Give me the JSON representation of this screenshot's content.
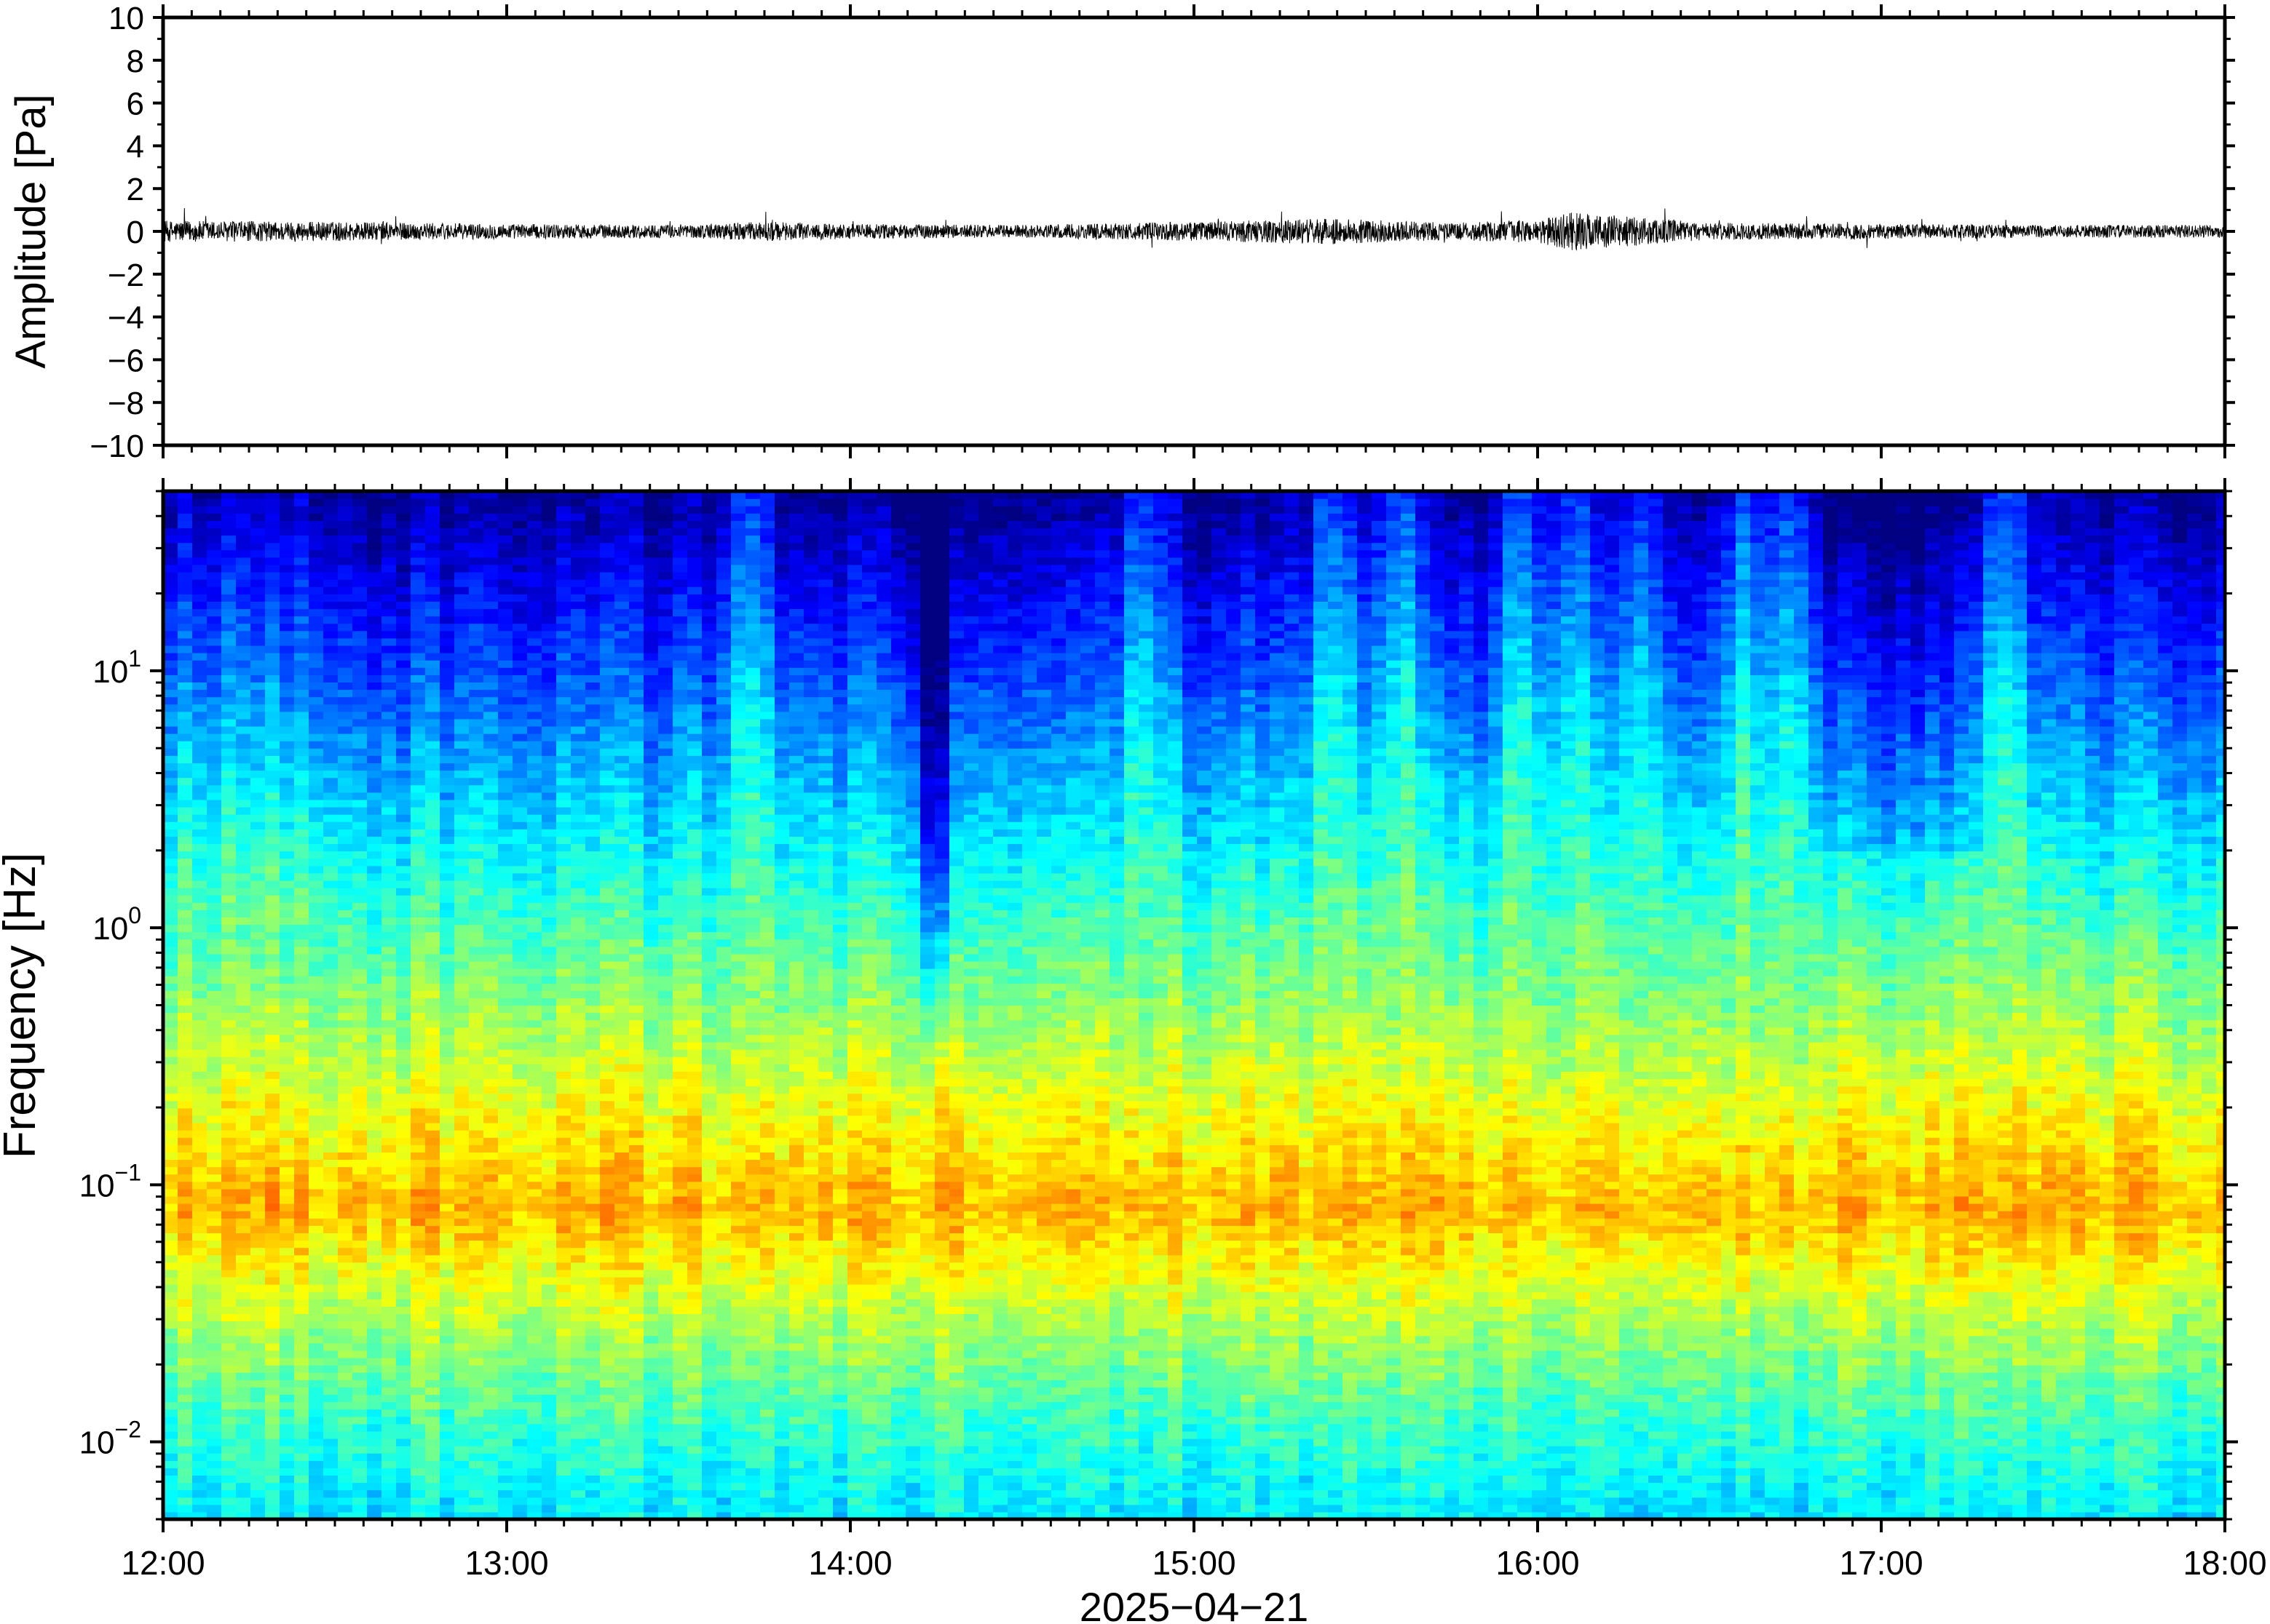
{
  "chart_data": [
    {
      "type": "line",
      "panel": "waveform",
      "ylabel": "Amplitude [Pa]",
      "ylim": [
        -10,
        10
      ],
      "yticks": [
        10,
        8,
        6,
        4,
        2,
        0,
        -2,
        -4,
        -6,
        -8,
        -10
      ],
      "ytick_labels": [
        "10",
        "8",
        "6",
        "4",
        "2",
        "0",
        "−2",
        "−4",
        "−6",
        "−8",
        "−10"
      ],
      "grid": false,
      "trace_color": "#000000",
      "series": [
        {
          "x_hours": [
            12.0,
            12.5,
            13.0,
            13.5,
            13.75,
            14.0,
            14.5,
            15.0,
            15.4,
            15.75,
            16.0,
            16.1,
            16.5,
            17.0,
            17.5,
            18.0
          ],
          "envelope_pa": [
            0.5,
            0.45,
            0.35,
            0.3,
            0.45,
            0.35,
            0.3,
            0.45,
            0.6,
            0.4,
            0.55,
            0.9,
            0.4,
            0.35,
            0.3,
            0.3
          ]
        }
      ]
    },
    {
      "type": "heatmap",
      "panel": "spectrogram",
      "ylabel": "Frequency [Hz]",
      "yscale": "log",
      "ylim": [
        0.005,
        50
      ],
      "yticks": [
        0.01,
        0.1,
        1,
        10
      ],
      "ytick_labels": [
        {
          "base": "10",
          "exp": "−2"
        },
        {
          "base": "10",
          "exp": "−1"
        },
        {
          "base": "10",
          "exp": "0"
        },
        {
          "base": "10",
          "exp": "1"
        }
      ],
      "colormap": "jet",
      "energy_peak_hz": 0.08,
      "quiet_dip_time": "14:15",
      "active_columns_hours": [
        13.7,
        14.85,
        15.4,
        15.6,
        15.95,
        16.1,
        16.3,
        16.6,
        16.75,
        17.35
      ]
    }
  ],
  "xaxis": {
    "xlim": [
      "12:00",
      "18:00"
    ],
    "tick_labels": [
      "12:00",
      "13:00",
      "14:00",
      "15:00",
      "16:00",
      "17:00",
      "18:00"
    ],
    "xlabel": "2025−04−21"
  }
}
